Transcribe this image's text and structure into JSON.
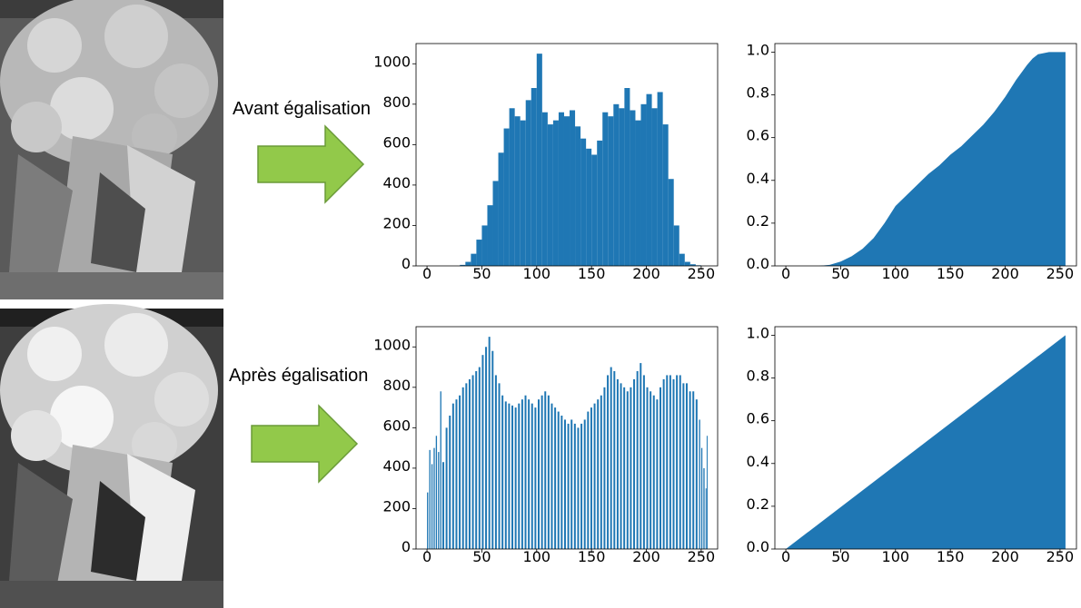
{
  "rows": [
    {
      "caption": "Avant égalisation"
    },
    {
      "caption": "Après égalisation"
    }
  ],
  "colors": {
    "bar": "#1f77b4",
    "arrow_fill": "#92c94a",
    "arrow_stroke": "#6a9a38"
  },
  "chart_data": [
    {
      "type": "bar",
      "id": "hist-before",
      "title": "",
      "xlabel": "",
      "ylabel": "",
      "xlim": [
        -10,
        265
      ],
      "ylim": [
        0,
        1100
      ],
      "xticks": [
        0,
        50,
        100,
        150,
        200,
        250
      ],
      "yticks": [
        0,
        200,
        400,
        600,
        800,
        1000
      ],
      "x": [
        30,
        35,
        40,
        45,
        50,
        55,
        60,
        65,
        70,
        75,
        80,
        85,
        90,
        95,
        100,
        105,
        110,
        115,
        120,
        125,
        130,
        135,
        140,
        145,
        150,
        155,
        160,
        165,
        170,
        175,
        180,
        185,
        190,
        195,
        200,
        205,
        210,
        215,
        220,
        225,
        230,
        235,
        240,
        245,
        250
      ],
      "values": [
        5,
        20,
        60,
        130,
        200,
        300,
        420,
        560,
        680,
        780,
        740,
        720,
        820,
        880,
        1050,
        760,
        700,
        720,
        760,
        740,
        770,
        690,
        630,
        580,
        550,
        620,
        760,
        740,
        800,
        780,
        880,
        770,
        720,
        800,
        850,
        780,
        860,
        700,
        430,
        200,
        60,
        20,
        8,
        3,
        0
      ]
    },
    {
      "type": "area",
      "id": "cdf-before",
      "title": "",
      "xlabel": "",
      "ylabel": "",
      "xlim": [
        -10,
        265
      ],
      "ylim": [
        0,
        1.04
      ],
      "xticks": [
        0,
        50,
        100,
        150,
        200,
        250
      ],
      "yticks": [
        0.0,
        0.2,
        0.4,
        0.6,
        0.8,
        1.0
      ],
      "x": [
        0,
        30,
        40,
        50,
        60,
        70,
        80,
        90,
        100,
        110,
        120,
        130,
        140,
        150,
        160,
        170,
        180,
        190,
        200,
        210,
        220,
        225,
        230,
        240,
        250,
        255
      ],
      "values": [
        0,
        0,
        0.005,
        0.02,
        0.045,
        0.08,
        0.13,
        0.2,
        0.28,
        0.33,
        0.38,
        0.43,
        0.47,
        0.52,
        0.56,
        0.61,
        0.66,
        0.72,
        0.79,
        0.87,
        0.94,
        0.97,
        0.99,
        1.0,
        1.0,
        1.0
      ]
    },
    {
      "type": "bar",
      "id": "hist-after",
      "title": "",
      "xlabel": "",
      "ylabel": "",
      "xlim": [
        -10,
        265
      ],
      "ylim": [
        0,
        1100
      ],
      "xticks": [
        0,
        50,
        100,
        150,
        200,
        250
      ],
      "yticks": [
        0,
        200,
        400,
        600,
        800,
        1000
      ],
      "x": [
        0,
        2,
        4,
        6,
        8,
        10,
        12,
        14,
        17,
        20,
        23,
        26,
        29,
        32,
        35,
        38,
        41,
        44,
        47,
        50,
        53,
        56,
        59,
        62,
        65,
        68,
        71,
        74,
        77,
        80,
        83,
        86,
        89,
        92,
        95,
        98,
        101,
        104,
        107,
        110,
        113,
        116,
        119,
        122,
        125,
        128,
        131,
        134,
        137,
        140,
        143,
        146,
        149,
        152,
        155,
        158,
        161,
        164,
        167,
        170,
        173,
        176,
        179,
        182,
        185,
        188,
        191,
        194,
        197,
        200,
        203,
        206,
        209,
        212,
        215,
        218,
        221,
        224,
        227,
        230,
        233,
        236,
        239,
        242,
        245,
        248,
        250,
        252,
        254,
        255
      ],
      "values": [
        280,
        490,
        420,
        500,
        560,
        480,
        780,
        430,
        600,
        660,
        720,
        740,
        760,
        800,
        820,
        840,
        860,
        880,
        900,
        960,
        1000,
        1050,
        980,
        860,
        820,
        760,
        730,
        720,
        710,
        700,
        720,
        740,
        760,
        740,
        720,
        700,
        740,
        760,
        780,
        760,
        720,
        700,
        680,
        660,
        640,
        620,
        640,
        620,
        600,
        620,
        640,
        680,
        700,
        720,
        740,
        760,
        800,
        860,
        900,
        880,
        840,
        820,
        800,
        780,
        800,
        840,
        880,
        920,
        860,
        800,
        780,
        760,
        740,
        800,
        840,
        860,
        860,
        840,
        860,
        860,
        820,
        820,
        780,
        780,
        740,
        640,
        500,
        400,
        300,
        560
      ]
    },
    {
      "type": "area",
      "id": "cdf-after",
      "title": "",
      "xlabel": "",
      "ylabel": "",
      "xlim": [
        -10,
        265
      ],
      "ylim": [
        0,
        1.04
      ],
      "xticks": [
        0,
        50,
        100,
        150,
        200,
        250
      ],
      "yticks": [
        0.0,
        0.2,
        0.4,
        0.6,
        0.8,
        1.0
      ],
      "x": [
        0,
        255
      ],
      "values": [
        0,
        1.0
      ]
    }
  ]
}
